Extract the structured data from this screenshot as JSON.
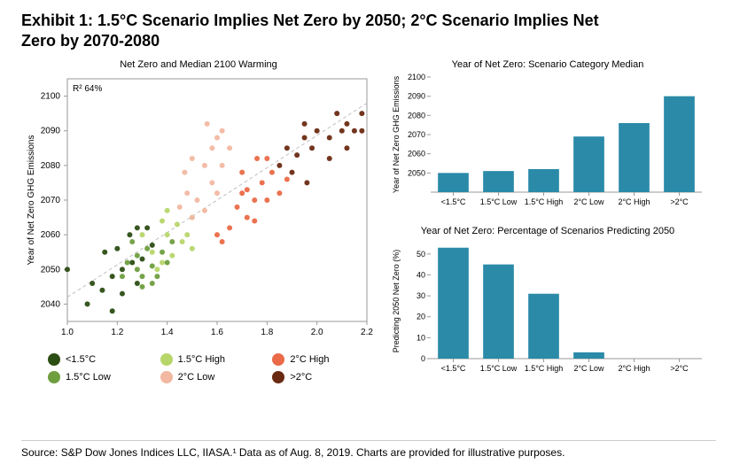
{
  "title": "Exhibit 1: 1.5°C Scenario Implies Net Zero by 2050; 2°C Scenario Implies Net Zero by 2070-2080",
  "source": "Source: S&P Dow Jones Indices LLC, IIASA.¹ Data as of Aug. 8, 2019. Charts are provided for illustrative purposes.",
  "colors": {
    "lt15": "#2c4d14",
    "c15low": "#6f9e3f",
    "c15high": "#b7d66a",
    "c2low": "#f2b8a2",
    "c2high": "#ea6a47",
    "gt2": "#6a2a12",
    "bar": "#2a8aa8",
    "trend": "#bfbfbf",
    "axis": "#999999",
    "text": "#000000",
    "bg": "#ffffff"
  },
  "scatter": {
    "title": "Net Zero and Median 2100 Warming",
    "r2_label": "R² 64%",
    "ylabel": "Year of Net Zero GHG Emissions",
    "xlim": [
      1.0,
      2.2
    ],
    "ylim": [
      2035,
      2105
    ],
    "xticks": [
      1.0,
      1.2,
      1.4,
      1.6,
      1.8,
      2.0,
      2.2
    ],
    "yticks": [
      2040,
      2050,
      2060,
      2070,
      2080,
      2090,
      2100
    ],
    "marker_radius": 3,
    "trendline": {
      "x1": 1.0,
      "y1": 2042,
      "x2": 2.2,
      "y2": 2098,
      "dash": "4 3"
    },
    "groups": [
      {
        "key": "lt15",
        "label": "<1.5°C",
        "points": [
          [
            1.0,
            2050
          ],
          [
            1.08,
            2040
          ],
          [
            1.1,
            2046
          ],
          [
            1.14,
            2044
          ],
          [
            1.18,
            2048
          ],
          [
            1.15,
            2055
          ],
          [
            1.22,
            2050
          ],
          [
            1.2,
            2056
          ],
          [
            1.26,
            2052
          ],
          [
            1.28,
            2046
          ],
          [
            1.3,
            2053
          ],
          [
            1.25,
            2060
          ],
          [
            1.28,
            2062
          ],
          [
            1.34,
            2057
          ],
          [
            1.32,
            2062
          ],
          [
            1.22,
            2043
          ],
          [
            1.18,
            2038
          ]
        ]
      },
      {
        "key": "c15low",
        "label": "1.5°C Low",
        "points": [
          [
            1.22,
            2048
          ],
          [
            1.24,
            2052
          ],
          [
            1.28,
            2050
          ],
          [
            1.3,
            2048
          ],
          [
            1.26,
            2058
          ],
          [
            1.34,
            2051
          ],
          [
            1.36,
            2048
          ],
          [
            1.32,
            2056
          ],
          [
            1.3,
            2045
          ],
          [
            1.38,
            2055
          ],
          [
            1.4,
            2052
          ],
          [
            1.42,
            2058
          ],
          [
            1.28,
            2054
          ],
          [
            1.34,
            2046
          ]
        ]
      },
      {
        "key": "c15high",
        "label": "1.5°C High",
        "points": [
          [
            1.34,
            2055
          ],
          [
            1.38,
            2052
          ],
          [
            1.4,
            2060
          ],
          [
            1.42,
            2054
          ],
          [
            1.46,
            2058
          ],
          [
            1.44,
            2063
          ],
          [
            1.36,
            2050
          ],
          [
            1.3,
            2060
          ],
          [
            1.48,
            2060
          ],
          [
            1.5,
            2056
          ],
          [
            1.4,
            2067
          ],
          [
            1.38,
            2064
          ],
          [
            1.5,
            2065
          ]
        ]
      },
      {
        "key": "c2low",
        "label": "2°C Low",
        "points": [
          [
            1.45,
            2068
          ],
          [
            1.48,
            2072
          ],
          [
            1.5,
            2065
          ],
          [
            1.52,
            2070
          ],
          [
            1.55,
            2067
          ],
          [
            1.58,
            2075
          ],
          [
            1.6,
            2072
          ],
          [
            1.55,
            2080
          ],
          [
            1.5,
            2082
          ],
          [
            1.58,
            2085
          ],
          [
            1.62,
            2080
          ],
          [
            1.6,
            2088
          ],
          [
            1.47,
            2078
          ],
          [
            1.56,
            2092
          ],
          [
            1.65,
            2085
          ],
          [
            1.62,
            2090
          ]
        ]
      },
      {
        "key": "c2high",
        "label": "2°C High",
        "points": [
          [
            1.6,
            2060
          ],
          [
            1.62,
            2058
          ],
          [
            1.65,
            2062
          ],
          [
            1.68,
            2068
          ],
          [
            1.7,
            2072
          ],
          [
            1.72,
            2065
          ],
          [
            1.75,
            2070
          ],
          [
            1.7,
            2078
          ],
          [
            1.78,
            2075
          ],
          [
            1.8,
            2070
          ],
          [
            1.76,
            2082
          ],
          [
            1.82,
            2078
          ],
          [
            1.85,
            2072
          ],
          [
            1.8,
            2082
          ],
          [
            1.72,
            2073
          ],
          [
            1.88,
            2076
          ],
          [
            1.75,
            2064
          ]
        ]
      },
      {
        "key": "gt2",
        "label": ">2°C",
        "points": [
          [
            1.85,
            2080
          ],
          [
            1.88,
            2085
          ],
          [
            1.9,
            2078
          ],
          [
            1.92,
            2083
          ],
          [
            1.95,
            2088
          ],
          [
            1.98,
            2085
          ],
          [
            2.0,
            2090
          ],
          [
            1.95,
            2092
          ],
          [
            2.05,
            2088
          ],
          [
            2.08,
            2095
          ],
          [
            2.1,
            2090
          ],
          [
            2.12,
            2092
          ],
          [
            2.15,
            2090
          ],
          [
            2.18,
            2095
          ],
          [
            2.05,
            2082
          ],
          [
            2.12,
            2085
          ],
          [
            2.18,
            2090
          ],
          [
            1.96,
            2075
          ]
        ]
      }
    ],
    "legend_order": [
      "lt15",
      "c15high",
      "c2high",
      "c15low",
      "c2low",
      "gt2"
    ]
  },
  "bar_top": {
    "title": "Year of Net Zero: Scenario Category Median",
    "ylabel": "Year of Net Zero GHG Emissions",
    "categories": [
      "<1.5°C",
      "1.5°C Low",
      "1.5°C High",
      "2°C Low",
      "2°C High",
      ">2°C"
    ],
    "values": [
      2050,
      2051,
      2052,
      2069,
      2076,
      2090
    ],
    "ylim": [
      2040,
      2100
    ],
    "yticks": [
      2050,
      2060,
      2070,
      2080,
      2090,
      2100
    ],
    "bar_width": 0.68
  },
  "bar_bottom": {
    "title": "Year of Net Zero: Percentage of Scenarios Predicting 2050",
    "ylabel": "Predicting 2050 Net Zero (%)",
    "categories": [
      "<1.5°C",
      "1.5°C Low",
      "1.5°C High",
      "2°C Low",
      "2°C High",
      ">2°C"
    ],
    "values": [
      53,
      45,
      31,
      3,
      0,
      0
    ],
    "ylim": [
      0,
      55
    ],
    "yticks": [
      0,
      10,
      20,
      30,
      40,
      50
    ],
    "bar_width": 0.68
  }
}
